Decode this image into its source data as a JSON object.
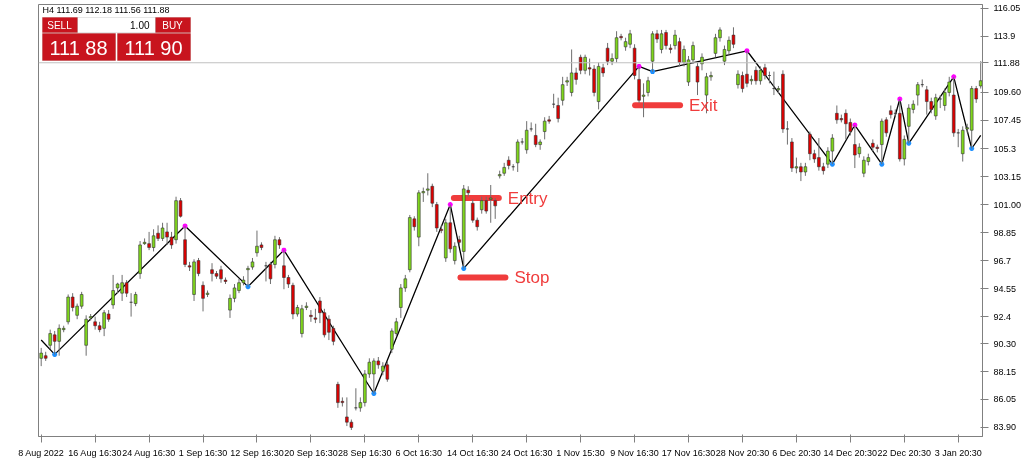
{
  "chart_data": {
    "type": "candlestick",
    "categories": [
      "8 Aug 2022",
      null,
      null,
      null,
      null,
      null,
      null,
      null,
      null,
      null,
      null,
      null,
      "16 Aug 16:30",
      null,
      null,
      null,
      null,
      null,
      null,
      null,
      null,
      null,
      null,
      null,
      "24 Aug 16:30",
      null,
      null,
      null,
      null,
      null,
      null,
      null,
      null,
      null,
      null,
      null,
      "1 Sep 16:30",
      null,
      null,
      null,
      null,
      null,
      null,
      null,
      null,
      null,
      null,
      null,
      "12 Sep 16:30",
      null,
      null,
      null,
      null,
      null,
      null,
      null,
      null,
      null,
      null,
      null,
      "20 Sep 16:30",
      null,
      null,
      null,
      null,
      null,
      null,
      null,
      null,
      null,
      null,
      null,
      "28 Sep 16:30",
      null,
      null,
      null,
      null,
      null,
      null,
      null,
      null,
      null,
      null,
      null,
      "6 Oct 16:30",
      null,
      null,
      null,
      null,
      null,
      null,
      null,
      null,
      null,
      null,
      null,
      "14 Oct 16:30",
      null,
      null,
      null,
      null,
      null,
      null,
      null,
      null,
      null,
      null,
      null,
      "24 Oct 16:30",
      null,
      null,
      null,
      null,
      null,
      null,
      null,
      null,
      null,
      null,
      null,
      "1 Nov 15:30",
      null,
      null,
      null,
      null,
      null,
      null,
      null,
      null,
      null,
      null,
      null,
      "9 Nov 16:30",
      null,
      null,
      null,
      null,
      null,
      null,
      null,
      null,
      null,
      null,
      null,
      "17 Nov 16:30",
      null,
      null,
      null,
      null,
      null,
      null,
      null,
      null,
      null,
      null,
      null,
      "28 Nov 20:30",
      null,
      null,
      null,
      null,
      null,
      null,
      null,
      null,
      null,
      null,
      null,
      "6 Dec 20:30",
      null,
      null,
      null,
      null,
      null,
      null,
      null,
      null,
      null,
      null,
      null,
      "14 Dec 20:30",
      null,
      null,
      null,
      null,
      null,
      null,
      null,
      null,
      null,
      null,
      null,
      "22 Dec 20:30",
      null,
      null,
      null,
      null,
      null,
      null,
      null,
      null,
      null,
      null,
      null,
      "3 Jan 20:30",
      null,
      null,
      null,
      null,
      null
    ],
    "ohlc": [
      [
        89.2,
        90.0,
        88.6,
        89.6
      ],
      [
        89.4,
        89.7,
        89.0,
        89.2
      ],
      [
        90.2,
        91.4,
        89.9,
        91.1
      ],
      [
        91.0,
        91.3,
        89.5,
        90.5
      ],
      [
        90.5,
        91.8,
        89.4,
        91.5
      ],
      [
        91.4,
        91.7,
        91.2,
        91.5
      ],
      [
        92.0,
        94.1,
        91.8,
        93.9
      ],
      [
        93.9,
        94.2,
        92.8,
        93.1
      ],
      [
        92.5,
        93.4,
        92.2,
        93.2
      ],
      [
        93.2,
        94.3,
        93.0,
        94.1
      ],
      [
        90.2,
        92.5,
        89.4,
        92.2
      ],
      [
        92.3,
        92.6,
        92.1,
        92.4
      ],
      [
        92.0,
        92.4,
        91.4,
        91.7
      ],
      [
        91.7,
        92.0,
        91.2,
        91.4
      ],
      [
        91.5,
        92.9,
        90.9,
        92.7
      ],
      [
        92.6,
        92.9,
        92.0,
        92.2
      ],
      [
        93.3,
        95.6,
        93.0,
        94.4
      ],
      [
        94.6,
        95.0,
        94.2,
        94.9
      ],
      [
        94.2,
        95.6,
        93.6,
        95.0
      ],
      [
        95.0,
        95.2,
        93.9,
        94.2
      ],
      [
        93.5,
        94.2,
        92.4,
        93.5
      ],
      [
        93.4,
        94.3,
        93.2,
        94.1
      ],
      [
        95.7,
        98.2,
        95.3,
        97.9
      ],
      [
        98.0,
        98.4,
        97.9,
        98.1
      ],
      [
        98.0,
        98.9,
        97.5,
        97.7
      ],
      [
        97.7,
        99.1,
        97.4,
        98.6
      ],
      [
        98.8,
        99.4,
        98.2,
        98.4
      ],
      [
        98.4,
        99.6,
        98.2,
        99.2
      ],
      [
        98.9,
        99.6,
        97.9,
        98.5
      ],
      [
        98.5,
        98.9,
        97.6,
        97.9
      ],
      [
        98.3,
        101.6,
        98.0,
        101.3
      ],
      [
        101.3,
        101.5,
        100.0,
        100.1
      ],
      [
        98.3,
        99.35,
        96.2,
        96.4
      ],
      [
        96.3,
        96.6,
        95.9,
        96.2
      ],
      [
        94.1,
        96.8,
        93.6,
        96.6
      ],
      [
        96.7,
        96.9,
        95.5,
        95.7
      ],
      [
        94.8,
        95.1,
        92.8,
        93.8
      ],
      [
        94.1,
        94.4,
        93.9,
        94.2
      ],
      [
        96.0,
        96.5,
        95.1,
        95.7
      ],
      [
        95.7,
        95.9,
        95.3,
        95.5
      ],
      [
        96.0,
        96.3,
        95.0,
        95.3
      ],
      [
        95.2,
        95.4,
        94.9,
        95.1
      ],
      [
        92.9,
        94.1,
        92.3,
        93.8
      ],
      [
        93.8,
        94.9,
        93.5,
        94.6
      ],
      [
        94.4,
        95.3,
        94.2,
        95.0
      ],
      [
        95.0,
        95.5,
        94.8,
        95.2
      ],
      [
        96.0,
        96.3,
        94.7,
        96.1
      ],
      [
        96.2,
        96.9,
        96.0,
        96.6
      ],
      [
        97.3,
        99.0,
        97.0,
        97.8
      ],
      [
        97.9,
        98.1,
        97.5,
        97.7
      ],
      [
        96.3,
        96.6,
        95.1,
        96.3
      ],
      [
        96.4,
        96.6,
        94.9,
        95.3
      ],
      [
        96.4,
        98.6,
        96.1,
        98.3
      ],
      [
        98.3,
        98.5,
        97.6,
        97.9
      ],
      [
        96.3,
        97.5,
        94.5,
        95.4
      ],
      [
        95.4,
        95.6,
        94.6,
        94.9
      ],
      [
        94.8,
        95.0,
        92.2,
        92.6
      ],
      [
        92.6,
        93.3,
        92.4,
        93.1
      ],
      [
        91.1,
        93.3,
        90.8,
        93.0
      ],
      [
        93.1,
        93.5,
        92.9,
        93.2
      ],
      [
        92.5,
        92.9,
        92.0,
        92.4
      ],
      [
        92.3,
        93.0,
        91.9,
        92.2
      ],
      [
        93.6,
        93.9,
        91.9,
        92.7
      ],
      [
        92.7,
        93.0,
        90.8,
        91.0
      ],
      [
        92.2,
        92.5,
        90.6,
        91.2
      ],
      [
        91.5,
        91.7,
        90.2,
        90.5
      ],
      [
        87.2,
        87.4,
        85.4,
        85.8
      ],
      [
        85.9,
        86.2,
        85.5,
        85.8
      ],
      [
        84.7,
        86.2,
        84.0,
        84.3
      ],
      [
        84.3,
        84.5,
        83.7,
        83.9
      ],
      [
        85.4,
        86.9,
        85.2,
        85.4
      ],
      [
        85.4,
        86.2,
        85.1,
        85.8
      ],
      [
        85.8,
        88.3,
        85.5,
        88.0
      ],
      [
        88.0,
        89.2,
        87.7,
        88.9
      ],
      [
        88.0,
        89.2,
        86.5,
        89.0
      ],
      [
        89.0,
        89.3,
        88.4,
        88.7
      ],
      [
        88.2,
        88.9,
        87.9,
        88.6
      ],
      [
        88.7,
        89.0,
        87.4,
        87.6
      ],
      [
        89.9,
        91.5,
        89.6,
        91.3
      ],
      [
        91.1,
        92.3,
        90.9,
        92.0
      ],
      [
        93.1,
        94.9,
        92.3,
        94.6
      ],
      [
        94.6,
        95.6,
        94.3,
        95.3
      ],
      [
        96.0,
        100.2,
        95.8,
        100.0
      ],
      [
        99.9,
        100.1,
        99.0,
        99.3
      ],
      [
        98.5,
        102.1,
        97.8,
        101.9
      ],
      [
        101.9,
        102.3,
        101.2,
        102.0
      ],
      [
        102.1,
        103.4,
        101.7,
        102.2
      ],
      [
        102.4,
        102.6,
        100.8,
        101.1
      ],
      [
        101.0,
        101.2,
        98.9,
        99.2
      ],
      [
        99.1,
        99.4,
        98.8,
        99.0
      ],
      [
        96.9,
        99.9,
        96.6,
        99.6
      ],
      [
        99.6,
        101.0,
        97.3,
        97.6
      ],
      [
        96.7,
        98.1,
        96.4,
        97.8
      ],
      [
        98.3,
        98.6,
        97.9,
        98.1
      ],
      [
        97.4,
        102.5,
        96.1,
        102.2
      ],
      [
        102.1,
        102.4,
        101.6,
        101.9
      ],
      [
        101.1,
        101.4,
        99.6,
        99.8
      ],
      [
        99.8,
        100.0,
        99.0,
        99.3
      ],
      [
        100.6,
        101.6,
        100.3,
        101.3
      ],
      [
        101.3,
        101.6,
        100.3,
        100.5
      ],
      [
        101.4,
        102.5,
        99.6,
        101.5
      ],
      [
        101.3,
        101.5,
        99.9,
        100.9
      ],
      [
        103.2,
        103.6,
        103.0,
        103.3
      ],
      [
        103.4,
        104.2,
        103.2,
        103.85
      ],
      [
        104.4,
        104.7,
        103.7,
        104.0
      ],
      [
        103.9,
        104.1,
        103.6,
        103.9
      ],
      [
        104.2,
        106.0,
        103.5,
        105.8
      ],
      [
        105.8,
        106.1,
        105.6,
        105.8
      ],
      [
        105.2,
        107.4,
        104.9,
        106.7
      ],
      [
        106.8,
        107.3,
        106.6,
        106.8
      ],
      [
        106.3,
        107.2,
        105.4,
        105.6
      ],
      [
        105.6,
        106.0,
        105.2,
        105.8
      ],
      [
        106.6,
        107.7,
        106.0,
        107.4
      ],
      [
        107.5,
        107.8,
        107.2,
        107.4
      ],
      [
        108.7,
        109.5,
        108.4,
        108.7
      ],
      [
        108.6,
        109.2,
        107.3,
        107.6
      ],
      [
        109.0,
        110.8,
        108.6,
        110.2
      ],
      [
        110.4,
        110.8,
        110.1,
        110.5
      ],
      [
        109.6,
        112.9,
        109.3,
        111.1
      ],
      [
        111.1,
        111.5,
        110.2,
        110.6
      ],
      [
        112.3,
        112.5,
        111.0,
        111.3
      ],
      [
        111.3,
        112.5,
        111.0,
        112.3
      ],
      [
        111.5,
        112.2,
        110.9,
        111.4
      ],
      [
        111.4,
        111.7,
        109.3,
        109.6
      ],
      [
        108.9,
        111.9,
        108.3,
        111.6
      ],
      [
        111.5,
        111.8,
        110.8,
        111.1
      ],
      [
        113.0,
        113.4,
        111.7,
        112.0
      ],
      [
        112.0,
        112.6,
        111.7,
        112.2
      ],
      [
        112.2,
        114.3,
        111.9,
        113.8
      ],
      [
        113.9,
        114.1,
        113.6,
        113.8
      ],
      [
        113.1,
        113.8,
        112.8,
        113.5
      ],
      [
        113.3,
        114.4,
        113.0,
        114.1
      ],
      [
        113.0,
        113.3,
        110.6,
        110.9
      ],
      [
        110.6,
        111.6,
        108.8,
        109.0
      ],
      [
        109.3,
        110.3,
        107.7,
        109.4
      ],
      [
        109.6,
        110.8,
        109.3,
        110.5
      ],
      [
        112.0,
        114.3,
        111.2,
        114.1
      ],
      [
        114.1,
        114.4,
        113.4,
        113.7
      ],
      [
        112.9,
        114.4,
        112.6,
        114.1
      ],
      [
        114.2,
        114.4,
        112.9,
        113.2
      ],
      [
        113.0,
        113.3,
        112.6,
        112.9
      ],
      [
        113.2,
        114.4,
        112.9,
        114.0
      ],
      [
        113.5,
        113.8,
        111.6,
        111.9
      ],
      [
        111.9,
        113.2,
        111.6,
        112.9
      ],
      [
        110.4,
        112.4,
        110.1,
        112.1
      ],
      [
        112.1,
        113.5,
        111.8,
        113.2
      ],
      [
        111.6,
        111.9,
        109.4,
        110.4
      ],
      [
        111.8,
        112.6,
        111.3,
        112.3
      ],
      [
        109.4,
        111.1,
        108.0,
        110.8
      ],
      [
        110.8,
        111.2,
        110.5,
        110.9
      ],
      [
        112.6,
        114.1,
        112.3,
        113.8
      ],
      [
        113.8,
        114.6,
        113.5,
        114.4
      ],
      [
        112.0,
        113.2,
        111.7,
        112.9
      ],
      [
        112.8,
        113.9,
        112.5,
        113.6
      ],
      [
        114.0,
        114.6,
        113.0,
        113.3
      ],
      [
        110.2,
        111.3,
        109.9,
        111.0
      ],
      [
        110.9,
        111.2,
        109.6,
        109.9
      ],
      [
        111.0,
        112.8,
        110.0,
        110.3
      ],
      [
        110.5,
        110.9,
        110.2,
        110.6
      ],
      [
        111.3,
        111.6,
        110.2,
        110.5
      ],
      [
        110.5,
        111.6,
        110.2,
        111.3
      ],
      [
        111.5,
        111.8,
        110.6,
        110.9
      ],
      [
        110.9,
        111.2,
        110.3,
        110.9
      ],
      [
        109.9,
        111.2,
        109.4,
        109.9
      ],
      [
        109.8,
        110.1,
        109.5,
        109.9
      ],
      [
        111.0,
        111.3,
        106.5,
        106.8
      ],
      [
        106.8,
        107.4,
        105.6,
        106.8
      ],
      [
        105.8,
        106.1,
        103.5,
        103.8
      ],
      [
        103.8,
        104.6,
        103.4,
        103.9
      ],
      [
        103.9,
        104.2,
        102.8,
        103.5
      ],
      [
        103.5,
        104.2,
        103.2,
        103.9
      ],
      [
        106.4,
        106.6,
        104.4,
        104.9
      ],
      [
        104.9,
        105.2,
        104.2,
        104.5
      ],
      [
        104.6,
        106.1,
        103.6,
        103.9
      ],
      [
        103.9,
        104.2,
        103.3,
        103.6
      ],
      [
        104.1,
        105.4,
        103.8,
        105.1
      ],
      [
        105.1,
        106.4,
        104.1,
        106.1
      ],
      [
        108.0,
        108.6,
        107.2,
        107.5
      ],
      [
        107.6,
        107.9,
        107.3,
        107.5
      ],
      [
        108.0,
        108.3,
        106.0,
        107.2
      ],
      [
        107.3,
        107.6,
        106.3,
        106.6
      ],
      [
        105.6,
        107.1,
        103.8,
        104.8
      ],
      [
        104.9,
        105.7,
        104.6,
        105.4
      ],
      [
        103.4,
        104.7,
        103.1,
        104.4
      ],
      [
        104.3,
        104.9,
        104.0,
        104.6
      ],
      [
        105.7,
        106.0,
        105.1,
        105.4
      ],
      [
        105.4,
        105.6,
        105.0,
        105.3
      ],
      [
        105.6,
        107.6,
        104.1,
        107.4
      ],
      [
        107.5,
        107.7,
        106.2,
        106.5
      ],
      [
        108.2,
        108.6,
        107.6,
        107.9
      ],
      [
        108.0,
        108.3,
        107.8,
        108.0
      ],
      [
        108.0,
        109.1,
        104.3,
        104.5
      ],
      [
        104.5,
        106.3,
        104.0,
        106.0
      ],
      [
        107.0,
        108.7,
        105.7,
        108.4
      ],
      [
        108.3,
        109.0,
        108.0,
        108.7
      ],
      [
        109.4,
        110.4,
        108.6,
        110.2
      ],
      [
        110.2,
        110.6,
        110.0,
        110.2
      ],
      [
        109.8,
        110.1,
        107.9,
        108.9
      ],
      [
        108.9,
        109.2,
        108.0,
        108.3
      ],
      [
        107.8,
        109.5,
        107.5,
        109.2
      ],
      [
        109.1,
        109.4,
        108.4,
        109.1
      ],
      [
        108.6,
        109.9,
        108.2,
        109.6
      ],
      [
        109.6,
        110.8,
        109.3,
        110.4
      ],
      [
        109.4,
        110.8,
        106.2,
        106.5
      ],
      [
        106.5,
        106.8,
        105.4,
        106.5
      ],
      [
        104.9,
        107.0,
        104.3,
        106.7
      ],
      [
        106.8,
        107.2,
        106.5,
        106.9
      ],
      [
        106.7,
        110.1,
        105.3,
        109.9
      ],
      [
        109.9,
        110.1,
        108.8,
        109.1
      ],
      [
        110.1,
        112.0,
        109.9,
        110.5
      ]
    ],
    "series": [
      {
        "type": "line",
        "color": "#000000",
        "values": [
          90.6,
          null,
          null,
          89.5,
          null,
          null,
          null,
          null,
          null,
          null,
          null,
          null,
          null,
          null,
          null,
          null,
          null,
          null,
          null,
          null,
          null,
          null,
          null,
          null,
          null,
          null,
          null,
          null,
          null,
          null,
          null,
          null,
          99.35,
          null,
          null,
          null,
          null,
          null,
          null,
          null,
          null,
          null,
          null,
          null,
          null,
          null,
          94.7,
          null,
          null,
          null,
          null,
          null,
          null,
          null,
          97.5,
          null,
          null,
          null,
          null,
          null,
          null,
          null,
          null,
          null,
          null,
          null,
          null,
          null,
          null,
          null,
          null,
          null,
          null,
          null,
          86.5,
          null,
          null,
          null,
          null,
          null,
          null,
          null,
          null,
          null,
          null,
          null,
          null,
          null,
          null,
          null,
          null,
          101.0,
          null,
          null,
          96.1,
          null,
          null,
          null,
          null,
          null,
          null,
          null,
          null,
          null,
          null,
          null,
          null,
          null,
          null,
          null,
          null,
          null,
          null,
          null,
          null,
          null,
          null,
          null,
          null,
          null,
          null,
          null,
          null,
          null,
          null,
          null,
          null,
          null,
          null,
          null,
          null,
          null,
          null,
          111.6,
          null,
          null,
          111.2,
          null,
          null,
          null,
          null,
          null,
          null,
          null,
          null,
          null,
          null,
          null,
          null,
          null,
          null,
          null,
          null,
          null,
          null,
          null,
          null,
          112.8,
          null,
          null,
          null,
          null,
          null,
          null,
          null,
          null,
          null,
          null,
          null,
          null,
          null,
          null,
          null,
          null,
          null,
          null,
          104.1,
          null,
          null,
          null,
          null,
          107.1,
          null,
          null,
          null,
          null,
          null,
          104.1,
          null,
          null,
          null,
          109.1,
          null,
          105.7,
          null,
          null,
          null,
          null,
          null,
          null,
          null,
          null,
          null,
          110.8,
          null,
          null,
          null,
          105.3,
          null,
          106.3
        ]
      },
      {
        "type": "scatter",
        "color": "#ff00ff",
        "marker": "cross",
        "values": [
          null,
          null,
          null,
          null,
          null,
          null,
          null,
          null,
          null,
          null,
          null,
          null,
          null,
          null,
          null,
          null,
          null,
          null,
          null,
          null,
          null,
          null,
          null,
          null,
          null,
          null,
          null,
          null,
          null,
          null,
          null,
          null,
          99.35,
          null,
          null,
          null,
          null,
          null,
          null,
          null,
          null,
          null,
          null,
          null,
          null,
          null,
          null,
          null,
          null,
          null,
          null,
          null,
          null,
          null,
          97.5,
          null,
          null,
          null,
          null,
          null,
          null,
          null,
          null,
          null,
          null,
          null,
          null,
          null,
          null,
          null,
          null,
          null,
          null,
          null,
          null,
          null,
          null,
          null,
          null,
          null,
          null,
          null,
          null,
          null,
          null,
          null,
          null,
          null,
          null,
          null,
          null,
          101.0,
          null,
          null,
          null,
          null,
          null,
          null,
          null,
          null,
          null,
          null,
          null,
          null,
          null,
          null,
          null,
          null,
          null,
          null,
          null,
          null,
          null,
          null,
          null,
          null,
          null,
          null,
          null,
          null,
          null,
          null,
          null,
          null,
          null,
          null,
          null,
          null,
          null,
          null,
          null,
          null,
          null,
          111.6,
          null,
          null,
          null,
          null,
          null,
          null,
          null,
          null,
          null,
          null,
          null,
          null,
          null,
          null,
          null,
          null,
          null,
          null,
          null,
          null,
          null,
          null,
          null,
          112.8,
          null,
          null,
          null,
          null,
          null,
          null,
          null,
          null,
          null,
          null,
          null,
          null,
          null,
          null,
          null,
          null,
          null,
          null,
          null,
          null,
          null,
          null,
          null,
          107.1,
          null,
          null,
          null,
          null,
          null,
          null,
          null,
          null,
          null,
          109.1,
          null,
          null,
          null,
          null,
          null,
          null,
          null,
          null,
          null,
          null,
          null,
          110.8,
          null,
          null,
          null,
          null,
          null,
          null
        ]
      },
      {
        "type": "scatter",
        "color": "#1e90ff",
        "marker": "cross",
        "values": [
          null,
          null,
          null,
          89.5,
          null,
          null,
          null,
          null,
          null,
          null,
          null,
          null,
          null,
          null,
          null,
          null,
          null,
          null,
          null,
          null,
          null,
          null,
          null,
          null,
          null,
          null,
          null,
          null,
          null,
          null,
          null,
          null,
          null,
          null,
          null,
          null,
          null,
          null,
          null,
          null,
          null,
          null,
          null,
          null,
          null,
          null,
          94.7,
          null,
          null,
          null,
          null,
          null,
          null,
          null,
          null,
          null,
          null,
          null,
          null,
          null,
          null,
          null,
          null,
          null,
          null,
          null,
          null,
          null,
          null,
          null,
          null,
          null,
          null,
          null,
          86.5,
          null,
          null,
          null,
          null,
          null,
          null,
          null,
          null,
          null,
          null,
          null,
          null,
          null,
          null,
          null,
          null,
          null,
          null,
          null,
          96.1,
          null,
          null,
          null,
          null,
          null,
          null,
          null,
          null,
          null,
          null,
          null,
          null,
          null,
          null,
          null,
          null,
          null,
          null,
          null,
          null,
          null,
          null,
          null,
          null,
          null,
          null,
          null,
          null,
          null,
          null,
          null,
          null,
          null,
          null,
          null,
          null,
          null,
          null,
          null,
          null,
          null,
          111.2,
          null,
          null,
          null,
          null,
          null,
          null,
          null,
          null,
          null,
          null,
          null,
          null,
          null,
          null,
          null,
          null,
          null,
          null,
          null,
          null,
          null,
          null,
          null,
          null,
          null,
          null,
          null,
          null,
          null,
          null,
          null,
          null,
          null,
          null,
          null,
          null,
          null,
          null,
          null,
          104.1,
          null,
          null,
          null,
          null,
          null,
          null,
          null,
          null,
          null,
          null,
          104.1,
          null,
          null,
          null,
          null,
          null,
          105.7,
          null,
          null,
          null,
          null,
          null,
          null,
          null,
          null,
          null,
          null,
          null,
          null,
          null,
          105.3,
          null,
          null
        ]
      }
    ],
    "ylim": [
      83.2,
      116.35
    ],
    "yticks": [
      116.05,
      113.9,
      {
        "value": 109.6,
        "label": "109.60"
      },
      107.45,
      105.3,
      103.15,
      {
        "value": 101.0,
        "label": "101.00"
      },
      98.85,
      96.7,
      94.55,
      92.4,
      {
        "value": 90.3,
        "label": "90.30"
      },
      88.15,
      86.05,
      {
        "value": 83.9,
        "label": "83.90"
      }
    ],
    "ref_lines": [
      {
        "axis": "y",
        "value": 111.88,
        "label": "111.88",
        "color": "#c0c0c0"
      }
    ],
    "annotations": [
      "H4  111.69 112.18 111.56 111.88",
      "SELL",
      "1.00",
      "BUY",
      "111 88",
      "111 90",
      {
        "text": "Entry",
        "y": 101.5
      },
      "Stop",
      "Exit"
    ],
    "grid": false
  }
}
